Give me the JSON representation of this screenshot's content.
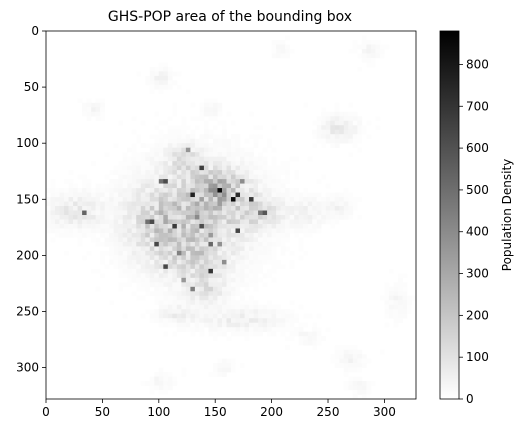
{
  "chart_data": {
    "type": "heatmap",
    "title": "GHS-POP area of the bounding box",
    "xlabel": "",
    "ylabel": "",
    "grid": false,
    "width_cells": 328,
    "height_cells": 328,
    "xlim": [
      0,
      328
    ],
    "ylim": [
      328,
      0
    ],
    "x_ticks": [
      0,
      50,
      100,
      150,
      200,
      250,
      300
    ],
    "y_ticks": [
      0,
      50,
      100,
      150,
      200,
      250,
      300
    ],
    "colormap": "Greys",
    "colormap_range_hex": [
      "#ffffff",
      "#000000"
    ],
    "colorbar": {
      "label": "Population Density",
      "vmin": 0,
      "vmax": 880,
      "ticks": [
        0,
        100,
        200,
        300,
        400,
        500,
        600,
        700,
        800
      ]
    },
    "density_clusters": [
      {
        "x": 135,
        "y": 158,
        "sx": 42,
        "sy": 38,
        "peak": 150
      },
      {
        "x": 100,
        "y": 170,
        "sx": 30,
        "sy": 30,
        "peak": 130
      },
      {
        "x": 150,
        "y": 140,
        "sx": 22,
        "sy": 16,
        "peak": 190
      },
      {
        "x": 130,
        "y": 200,
        "sx": 28,
        "sy": 22,
        "peak": 110
      },
      {
        "x": 185,
        "y": 160,
        "sx": 22,
        "sy": 14,
        "peak": 110
      },
      {
        "x": 120,
        "y": 112,
        "sx": 16,
        "sy": 12,
        "peak": 90
      },
      {
        "x": 25,
        "y": 158,
        "sx": 24,
        "sy": 14,
        "peak": 80
      },
      {
        "x": 140,
        "y": 228,
        "sx": 16,
        "sy": 14,
        "peak": 90
      },
      {
        "x": 170,
        "y": 255,
        "sx": 34,
        "sy": 9,
        "peak": 60
      },
      {
        "x": 115,
        "y": 250,
        "sx": 16,
        "sy": 8,
        "peak": 55
      },
      {
        "x": 258,
        "y": 85,
        "sx": 14,
        "sy": 10,
        "peak": 75
      },
      {
        "x": 230,
        "y": 160,
        "sx": 14,
        "sy": 11,
        "peak": 55
      },
      {
        "x": 258,
        "y": 155,
        "sx": 10,
        "sy": 8,
        "peak": 45
      },
      {
        "x": 100,
        "y": 40,
        "sx": 9,
        "sy": 7,
        "peak": 45
      },
      {
        "x": 40,
        "y": 68,
        "sx": 8,
        "sy": 6,
        "peak": 35
      },
      {
        "x": 145,
        "y": 68,
        "sx": 8,
        "sy": 6,
        "peak": 30
      },
      {
        "x": 268,
        "y": 290,
        "sx": 10,
        "sy": 8,
        "peak": 35
      },
      {
        "x": 100,
        "y": 310,
        "sx": 9,
        "sy": 7,
        "peak": 30
      },
      {
        "x": 205,
        "y": 15,
        "sx": 7,
        "sy": 6,
        "peak": 25
      },
      {
        "x": 285,
        "y": 15,
        "sx": 9,
        "sy": 7,
        "peak": 30
      },
      {
        "x": 310,
        "y": 240,
        "sx": 8,
        "sy": 12,
        "peak": 35
      },
      {
        "x": 155,
        "y": 298,
        "sx": 8,
        "sy": 6,
        "peak": 30
      },
      {
        "x": 230,
        "y": 270,
        "sx": 10,
        "sy": 6,
        "peak": 30
      },
      {
        "x": 275,
        "y": 315,
        "sx": 8,
        "sy": 6,
        "peak": 30
      }
    ],
    "max_value": 880
  }
}
